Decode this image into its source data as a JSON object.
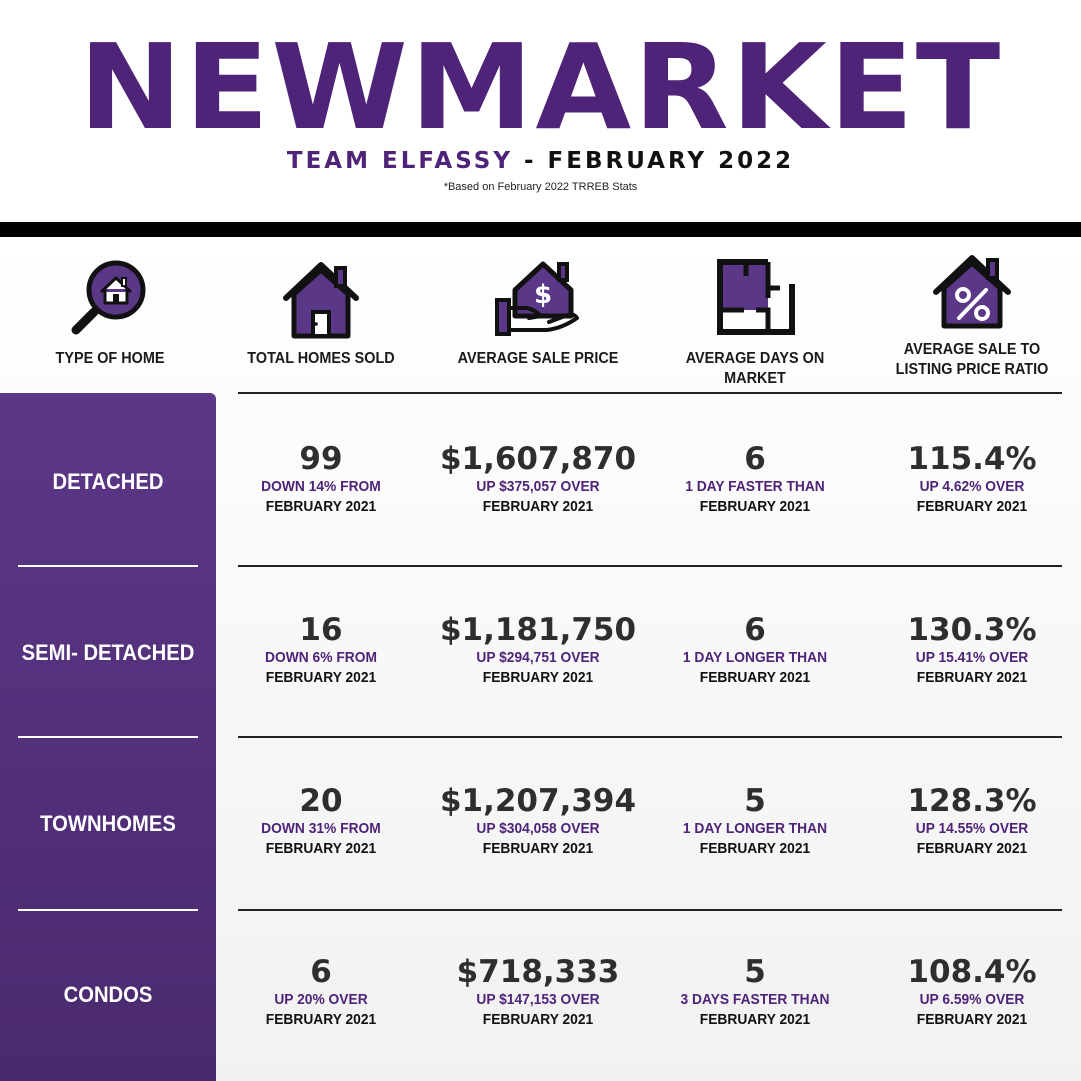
{
  "header": {
    "title": "NEWMARKET",
    "team": "TEAM ELFASSY",
    "separator": " - ",
    "period": "FEBRUARY 2022",
    "footnote": "*Based on February 2022 TRREB Stats"
  },
  "colors": {
    "brand_purple": "#4e2378",
    "sidebar": "#5b3787",
    "black": "#000000"
  },
  "columns": [
    {
      "icon": "house-magnifier-icon",
      "label": "TYPE OF HOME"
    },
    {
      "icon": "house-icon",
      "label": "TOTAL HOMES SOLD"
    },
    {
      "icon": "house-dollar-hand-icon",
      "label": "AVERAGE SALE PRICE"
    },
    {
      "icon": "floor-plan-icon",
      "label": "AVERAGE DAYS ON MARKET"
    },
    {
      "icon": "house-percent-icon",
      "label": "AVERAGE SALE TO LISTING PRICE RATIO"
    }
  ],
  "rows": [
    {
      "type": "DETACHED",
      "sold": {
        "value": "99",
        "change": "DOWN 14% FROM",
        "ref": "FEBRUARY 2021"
      },
      "price": {
        "value": "$1,607,870",
        "change": "UP $375,057 OVER",
        "ref": "FEBRUARY 2021"
      },
      "days": {
        "value": "6",
        "change": "1 DAY FASTER THAN",
        "ref": "FEBRUARY 2021"
      },
      "ratio": {
        "value": "115.4%",
        "change": "UP 4.62% OVER",
        "ref": "FEBRUARY 2021"
      }
    },
    {
      "type": "SEMI- DETACHED",
      "sold": {
        "value": "16",
        "change": "DOWN 6% FROM",
        "ref": "FEBRUARY 2021"
      },
      "price": {
        "value": "$1,181,750",
        "change": "UP $294,751 OVER",
        "ref": "FEBRUARY 2021"
      },
      "days": {
        "value": "6",
        "change": "1 DAY LONGER THAN",
        "ref": "FEBRUARY 2021"
      },
      "ratio": {
        "value": "130.3%",
        "change": "UP 15.41% OVER",
        "ref": "FEBRUARY 2021"
      }
    },
    {
      "type": "TOWNHOMES",
      "sold": {
        "value": "20",
        "change": "DOWN 31% FROM",
        "ref": "FEBRUARY 2021"
      },
      "price": {
        "value": "$1,207,394",
        "change": "UP $304,058 OVER",
        "ref": "FEBRUARY 2021"
      },
      "days": {
        "value": "5",
        "change": "1 DAY LONGER THAN",
        "ref": "FEBRUARY 2021"
      },
      "ratio": {
        "value": "128.3%",
        "change": "UP 14.55% OVER",
        "ref": "FEBRUARY 2021"
      }
    },
    {
      "type": "CONDOS",
      "sold": {
        "value": "6",
        "change": "UP 20% OVER",
        "ref": "FEBRUARY 2021"
      },
      "price": {
        "value": "$718,333",
        "change": "UP $147,153 OVER",
        "ref": "FEBRUARY 2021"
      },
      "days": {
        "value": "5",
        "change": "3 DAYS FASTER THAN",
        "ref": "FEBRUARY 2021"
      },
      "ratio": {
        "value": "108.4%",
        "change": "UP 6.59% OVER",
        "ref": "FEBRUARY 2021"
      }
    }
  ]
}
